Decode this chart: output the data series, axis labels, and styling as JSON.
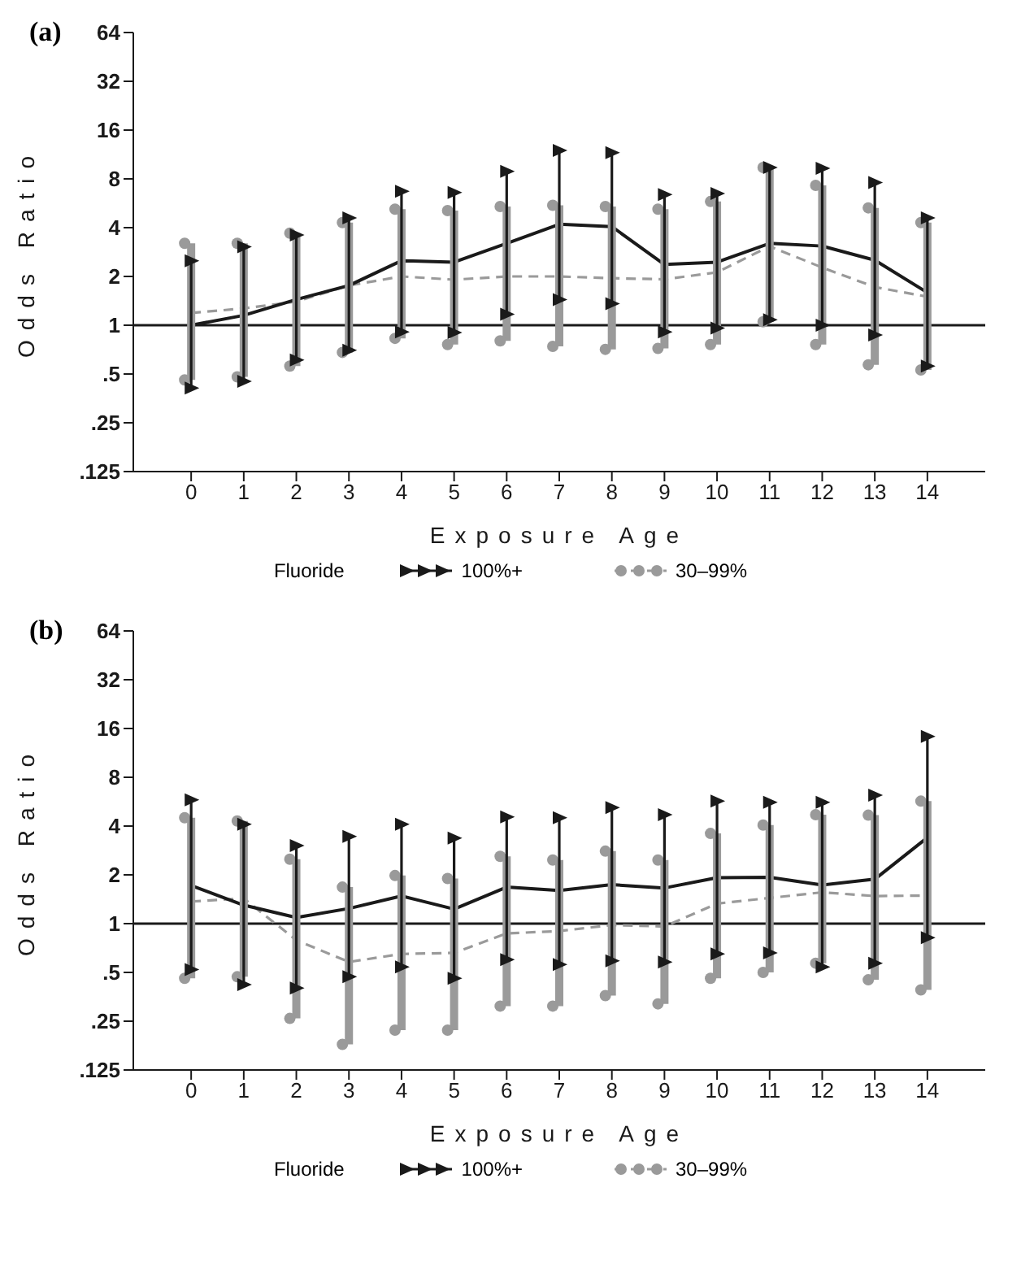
{
  "chart_data": [
    {
      "type": "line",
      "title": "(a)",
      "xlabel": "Exposure Age",
      "ylabel": "Odds Ratio",
      "legend_title": "Fluoride",
      "legend": "bottom",
      "grid": false,
      "log": true,
      "x": [
        0,
        1,
        2,
        3,
        4,
        5,
        6,
        7,
        8,
        9,
        10,
        11,
        12,
        13,
        14
      ],
      "xlim": [
        -1.1,
        15.1
      ],
      "xticks": [
        0,
        1,
        2,
        3,
        4,
        5,
        6,
        7,
        8,
        9,
        10,
        11,
        12,
        13,
        14
      ],
      "ylim": [
        0.125,
        64
      ],
      "yticks": [
        {
          "value": 0.125,
          "label": ".125"
        },
        {
          "value": 0.25,
          "label": ".25"
        },
        {
          "value": 0.5,
          "label": ".5"
        },
        1,
        2,
        4,
        8,
        16,
        32,
        64
      ],
      "ref_lines": [
        {
          "axis": "y",
          "value": 1,
          "color": "#1a1a1a"
        }
      ],
      "series": [
        {
          "name": "100%+",
          "color": "#1a1a1a",
          "line_style": "solid",
          "values": [
            1.0,
            1.15,
            1.44,
            1.76,
            2.5,
            2.45,
            3.2,
            4.2,
            4.06,
            2.37,
            2.45,
            3.2,
            3.08,
            2.52,
            1.59
          ],
          "errors": [
            [
              0.41,
              2.5
            ],
            [
              0.45,
              3.05
            ],
            [
              0.61,
              3.6
            ],
            [
              0.7,
              4.6
            ],
            [
              0.91,
              6.7
            ],
            [
              0.9,
              6.6
            ],
            [
              1.17,
              8.9
            ],
            [
              1.44,
              12
            ],
            [
              1.36,
              11.6
            ],
            [
              0.91,
              6.4
            ],
            [
              0.96,
              6.5
            ],
            [
              1.08,
              9.4
            ],
            [
              1.0,
              9.3
            ],
            [
              0.87,
              7.6
            ],
            [
              0.56,
              4.6
            ]
          ]
        },
        {
          "name": "30–99%",
          "color": "#9a9a9a",
          "line_style": "dashed",
          "values": [
            1.19,
            1.27,
            1.4,
            1.76,
            2.0,
            1.91,
            2.0,
            2.0,
            1.95,
            1.92,
            2.12,
            3.07,
            2.27,
            1.72,
            1.5
          ],
          "errors": [
            [
              0.46,
              3.2
            ],
            [
              0.48,
              3.2
            ],
            [
              0.56,
              3.7
            ],
            [
              0.68,
              4.3
            ],
            [
              0.83,
              5.2
            ],
            [
              0.76,
              5.1
            ],
            [
              0.8,
              5.4
            ],
            [
              0.74,
              5.5
            ],
            [
              0.71,
              5.4
            ],
            [
              0.72,
              5.2
            ],
            [
              0.76,
              5.8
            ],
            [
              1.05,
              9.4
            ],
            [
              0.76,
              7.3
            ],
            [
              0.57,
              5.3
            ],
            [
              0.53,
              4.3
            ]
          ]
        }
      ]
    },
    {
      "type": "line",
      "title": "(b)",
      "xlabel": "Exposure Age",
      "ylabel": "Odds Ratio",
      "legend_title": "Fluoride",
      "legend": "bottom",
      "grid": false,
      "log": true,
      "x": [
        0,
        1,
        2,
        3,
        4,
        5,
        6,
        7,
        8,
        9,
        10,
        11,
        12,
        13,
        14
      ],
      "xlim": [
        -1.1,
        15.1
      ],
      "xticks": [
        0,
        1,
        2,
        3,
        4,
        5,
        6,
        7,
        8,
        9,
        10,
        11,
        12,
        13,
        14
      ],
      "ylim": [
        0.125,
        64
      ],
      "yticks": [
        {
          "value": 0.125,
          "label": ".125"
        },
        {
          "value": 0.25,
          "label": ".25"
        },
        {
          "value": 0.5,
          "label": ".5"
        },
        1,
        2,
        4,
        8,
        16,
        32,
        64
      ],
      "ref_lines": [
        {
          "axis": "y",
          "value": 1,
          "color": "#1a1a1a"
        }
      ],
      "series": [
        {
          "name": "100%+",
          "color": "#1a1a1a",
          "line_style": "solid",
          "values": [
            1.72,
            1.3,
            1.09,
            1.24,
            1.48,
            1.23,
            1.68,
            1.6,
            1.74,
            1.66,
            1.92,
            1.93,
            1.73,
            1.88,
            3.4
          ],
          "errors": [
            [
              0.52,
              5.8
            ],
            [
              0.42,
              4.1
            ],
            [
              0.4,
              3.03
            ],
            [
              0.47,
              3.45
            ],
            [
              0.54,
              4.1
            ],
            [
              0.46,
              3.37
            ],
            [
              0.6,
              4.56
            ],
            [
              0.56,
              4.5
            ],
            [
              0.59,
              5.2
            ],
            [
              0.58,
              4.7
            ],
            [
              0.65,
              5.7
            ],
            [
              0.66,
              5.6
            ],
            [
              0.54,
              5.6
            ],
            [
              0.57,
              6.2
            ],
            [
              0.82,
              14.3
            ]
          ]
        },
        {
          "name": "30–99%",
          "color": "#9a9a9a",
          "line_style": "dashed",
          "values": [
            1.37,
            1.43,
            0.79,
            0.58,
            0.65,
            0.66,
            0.87,
            0.9,
            0.98,
            0.96,
            1.33,
            1.44,
            1.56,
            1.48,
            1.49
          ],
          "errors": [
            [
              0.46,
              4.5
            ],
            [
              0.47,
              4.3
            ],
            [
              0.26,
              2.5
            ],
            [
              0.18,
              1.68
            ],
            [
              0.22,
              1.98
            ],
            [
              0.22,
              1.9
            ],
            [
              0.31,
              2.6
            ],
            [
              0.31,
              2.47
            ],
            [
              0.36,
              2.8
            ],
            [
              0.32,
              2.47
            ],
            [
              0.46,
              3.6
            ],
            [
              0.5,
              4.06
            ],
            [
              0.57,
              4.7
            ],
            [
              0.45,
              4.67
            ],
            [
              0.39,
              5.7
            ]
          ]
        }
      ]
    }
  ]
}
